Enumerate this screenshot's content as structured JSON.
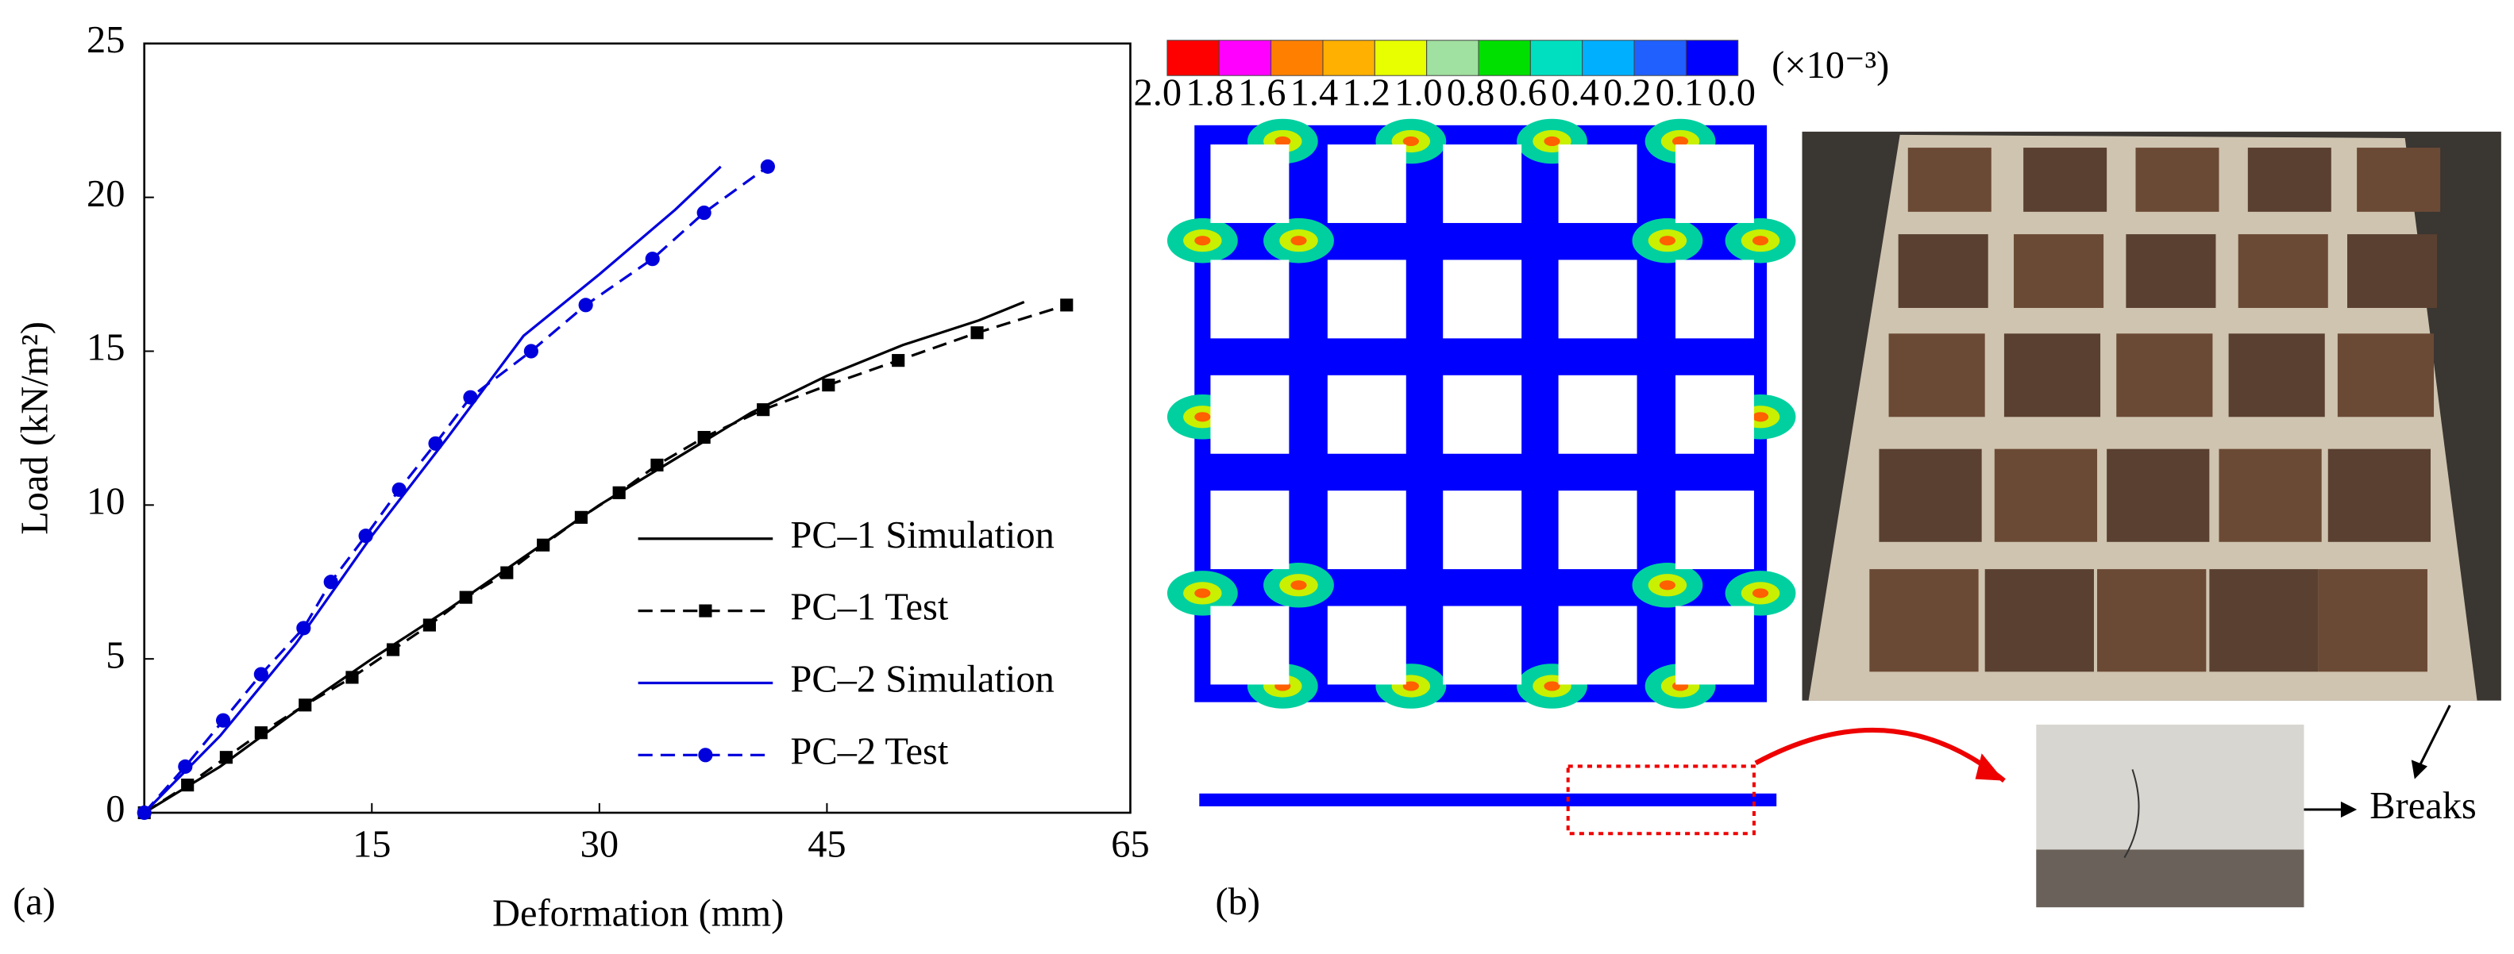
{
  "chart_data": {
    "type": "line",
    "panel_label": "(a)",
    "x_label": "Deformation (mm)",
    "y_label": "Load (kN/m²)",
    "xlim": [
      0,
      65
    ],
    "xticks": [
      15,
      30,
      45,
      65
    ],
    "ylim": [
      0,
      25
    ],
    "yticks": [
      0,
      5,
      10,
      15,
      20,
      25
    ],
    "legend": "lower right",
    "series": [
      {
        "name": "PC–1 Simulation",
        "color": "#000000",
        "dash": false,
        "marker": null,
        "x": [
          0,
          5,
          10,
          15,
          20,
          25,
          30,
          35,
          40,
          45,
          50,
          55,
          58
        ],
        "values": [
          0,
          1.5,
          3.3,
          5,
          6.6,
          8.3,
          10,
          11.5,
          13,
          14.2,
          15.2,
          16,
          16.6
        ]
      },
      {
        "name": "PC–1 Test",
        "color": "#000000",
        "dash": true,
        "marker": "square",
        "x": [
          0,
          2.85,
          5.4,
          7.7,
          10.6,
          13.7,
          16.4,
          18.8,
          21.2,
          23.9,
          26.3,
          28.8,
          31.3,
          33.8,
          36.9,
          40.8,
          45.1,
          49.7,
          54.9,
          60.8
        ],
        "values": [
          0,
          0.9,
          1.8,
          2.6,
          3.5,
          4.4,
          5.3,
          6.1,
          7.0,
          7.8,
          8.7,
          9.6,
          10.4,
          11.3,
          12.2,
          13.1,
          13.9,
          14.7,
          15.6,
          16.5
        ]
      },
      {
        "name": "PC–2 Simulation",
        "color": "#0000dd",
        "dash": false,
        "marker": null,
        "x": [
          0,
          5,
          10,
          15,
          20,
          25,
          30,
          35,
          38
        ],
        "values": [
          0,
          2.5,
          5.5,
          9,
          12.2,
          15.5,
          17.5,
          19.6,
          21
        ]
      },
      {
        "name": "PC–2 Test",
        "color": "#0000dd",
        "dash": true,
        "marker": "circle",
        "x": [
          0,
          2.7,
          5.2,
          7.7,
          10.5,
          12.3,
          14.6,
          16.8,
          19.2,
          21.5,
          25.5,
          29.1,
          33.5,
          36.9,
          41.1
        ],
        "values": [
          0,
          1.5,
          3,
          4.5,
          6,
          7.5,
          9,
          10.5,
          12,
          13.5,
          15,
          16.5,
          18,
          19.5,
          21
        ]
      }
    ]
  },
  "figure_b": {
    "panel_label": "(b)",
    "colorbar_unit": "(×10⁻³)",
    "colorbar_labels": [
      "2.0",
      "1.8",
      "1.6",
      "1.4",
      "1.2",
      "1.0",
      "0.8",
      "0.6",
      "0.4",
      "0.2",
      "0.1",
      "0.0"
    ],
    "colorbar_colors": [
      "#ff0000",
      "#ff00ff",
      "#ff8000",
      "#ffb000",
      "#e8ff00",
      "#a0e0a0",
      "#00e000",
      "#00e0c0",
      "#00b0ff",
      "#2060ff",
      "#0000ff"
    ],
    "annotation": "Breaks"
  }
}
